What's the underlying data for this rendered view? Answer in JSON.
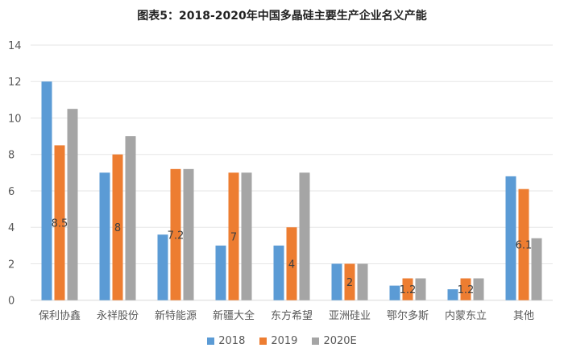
{
  "chart_data": {
    "type": "bar",
    "title": "图表5：2018-2020年中国多晶硅主要生产企业名义产能",
    "xlabel": "",
    "ylabel": "",
    "ylim": [
      0,
      14
    ],
    "yticks": [
      0,
      2,
      4,
      6,
      8,
      10,
      12,
      14
    ],
    "grid": true,
    "legend_position": "bottom",
    "categories": [
      "保利协鑫",
      "永祥股份",
      "新特能源",
      "新疆大全",
      "东方希望",
      "亚洲硅业",
      "鄂尔多斯",
      "内蒙东立",
      "其他"
    ],
    "series": [
      {
        "name": "2018",
        "color": "#5b9bd5",
        "values": [
          12,
          7,
          3.6,
          3,
          3,
          2,
          0.8,
          0.6,
          6.8
        ]
      },
      {
        "name": "2019",
        "color": "#ed7d31",
        "values": [
          8.5,
          8,
          7.2,
          7,
          4,
          2,
          1.2,
          1.2,
          6.1
        ],
        "data_labels": [
          "8.5",
          "8",
          "7.2",
          "7",
          "4",
          "2",
          "1.2",
          "1.2",
          "6.1"
        ]
      },
      {
        "name": "2020E",
        "color": "#a5a5a5",
        "values": [
          10.5,
          9,
          7.2,
          7,
          7,
          2,
          1.2,
          1.2,
          3.4
        ]
      }
    ]
  }
}
